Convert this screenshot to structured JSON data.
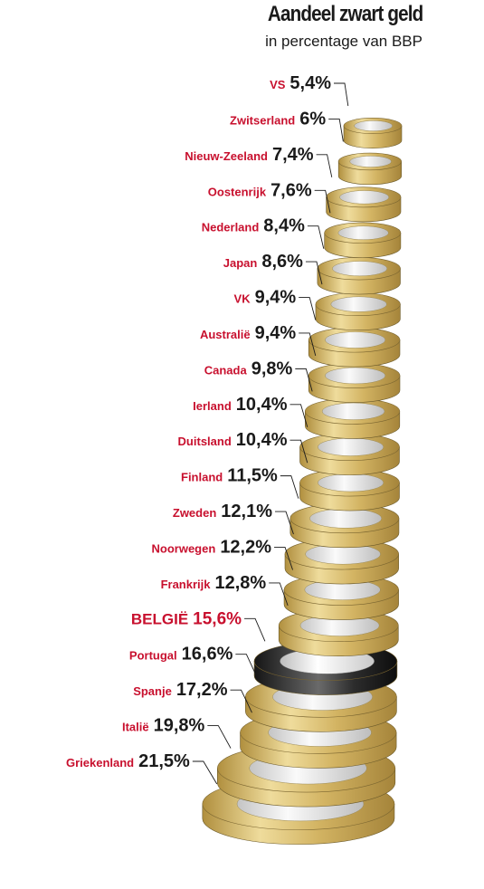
{
  "chart_data": {
    "type": "bar",
    "title": "Aandeel zwart geld",
    "subtitle": "in percentage van BBP",
    "categories": [
      "VS",
      "Zwitserland",
      "Nieuw-Zeeland",
      "Oostenrijk",
      "Nederland",
      "Japan",
      "VK",
      "Australië",
      "Canada",
      "Ierland",
      "Duitsland",
      "Finland",
      "Zweden",
      "Noorwegen",
      "Frankrijk",
      "BELGIË",
      "Portugal",
      "Spanje",
      "Italië",
      "Griekenland"
    ],
    "value_labels": [
      "5,4%",
      "6%",
      "7,4%",
      "7,6%",
      "8,4%",
      "8,6%",
      "9,4%",
      "9,4%",
      "9,8%",
      "10,4%",
      "10,4%",
      "11,5%",
      "12,1%",
      "12,2%",
      "12,8%",
      "15,6%",
      "16,6%",
      "17,2%",
      "19,8%",
      "21,5%"
    ],
    "series": [
      {
        "values": [
          5.4,
          6.0,
          7.4,
          7.6,
          8.4,
          8.6,
          9.4,
          9.4,
          9.8,
          10.4,
          10.4,
          11.5,
          12.1,
          12.2,
          12.8,
          15.6,
          16.6,
          17.2,
          19.8,
          21.5
        ]
      }
    ],
    "highlight": "BELGIË",
    "colors": {
      "label": "#c8102e",
      "value": "#1a1a1a",
      "coin_gold": "#d9bf73",
      "coin_silver": "#e3e3e3",
      "coin_highlight": "#2b2b2b"
    }
  }
}
